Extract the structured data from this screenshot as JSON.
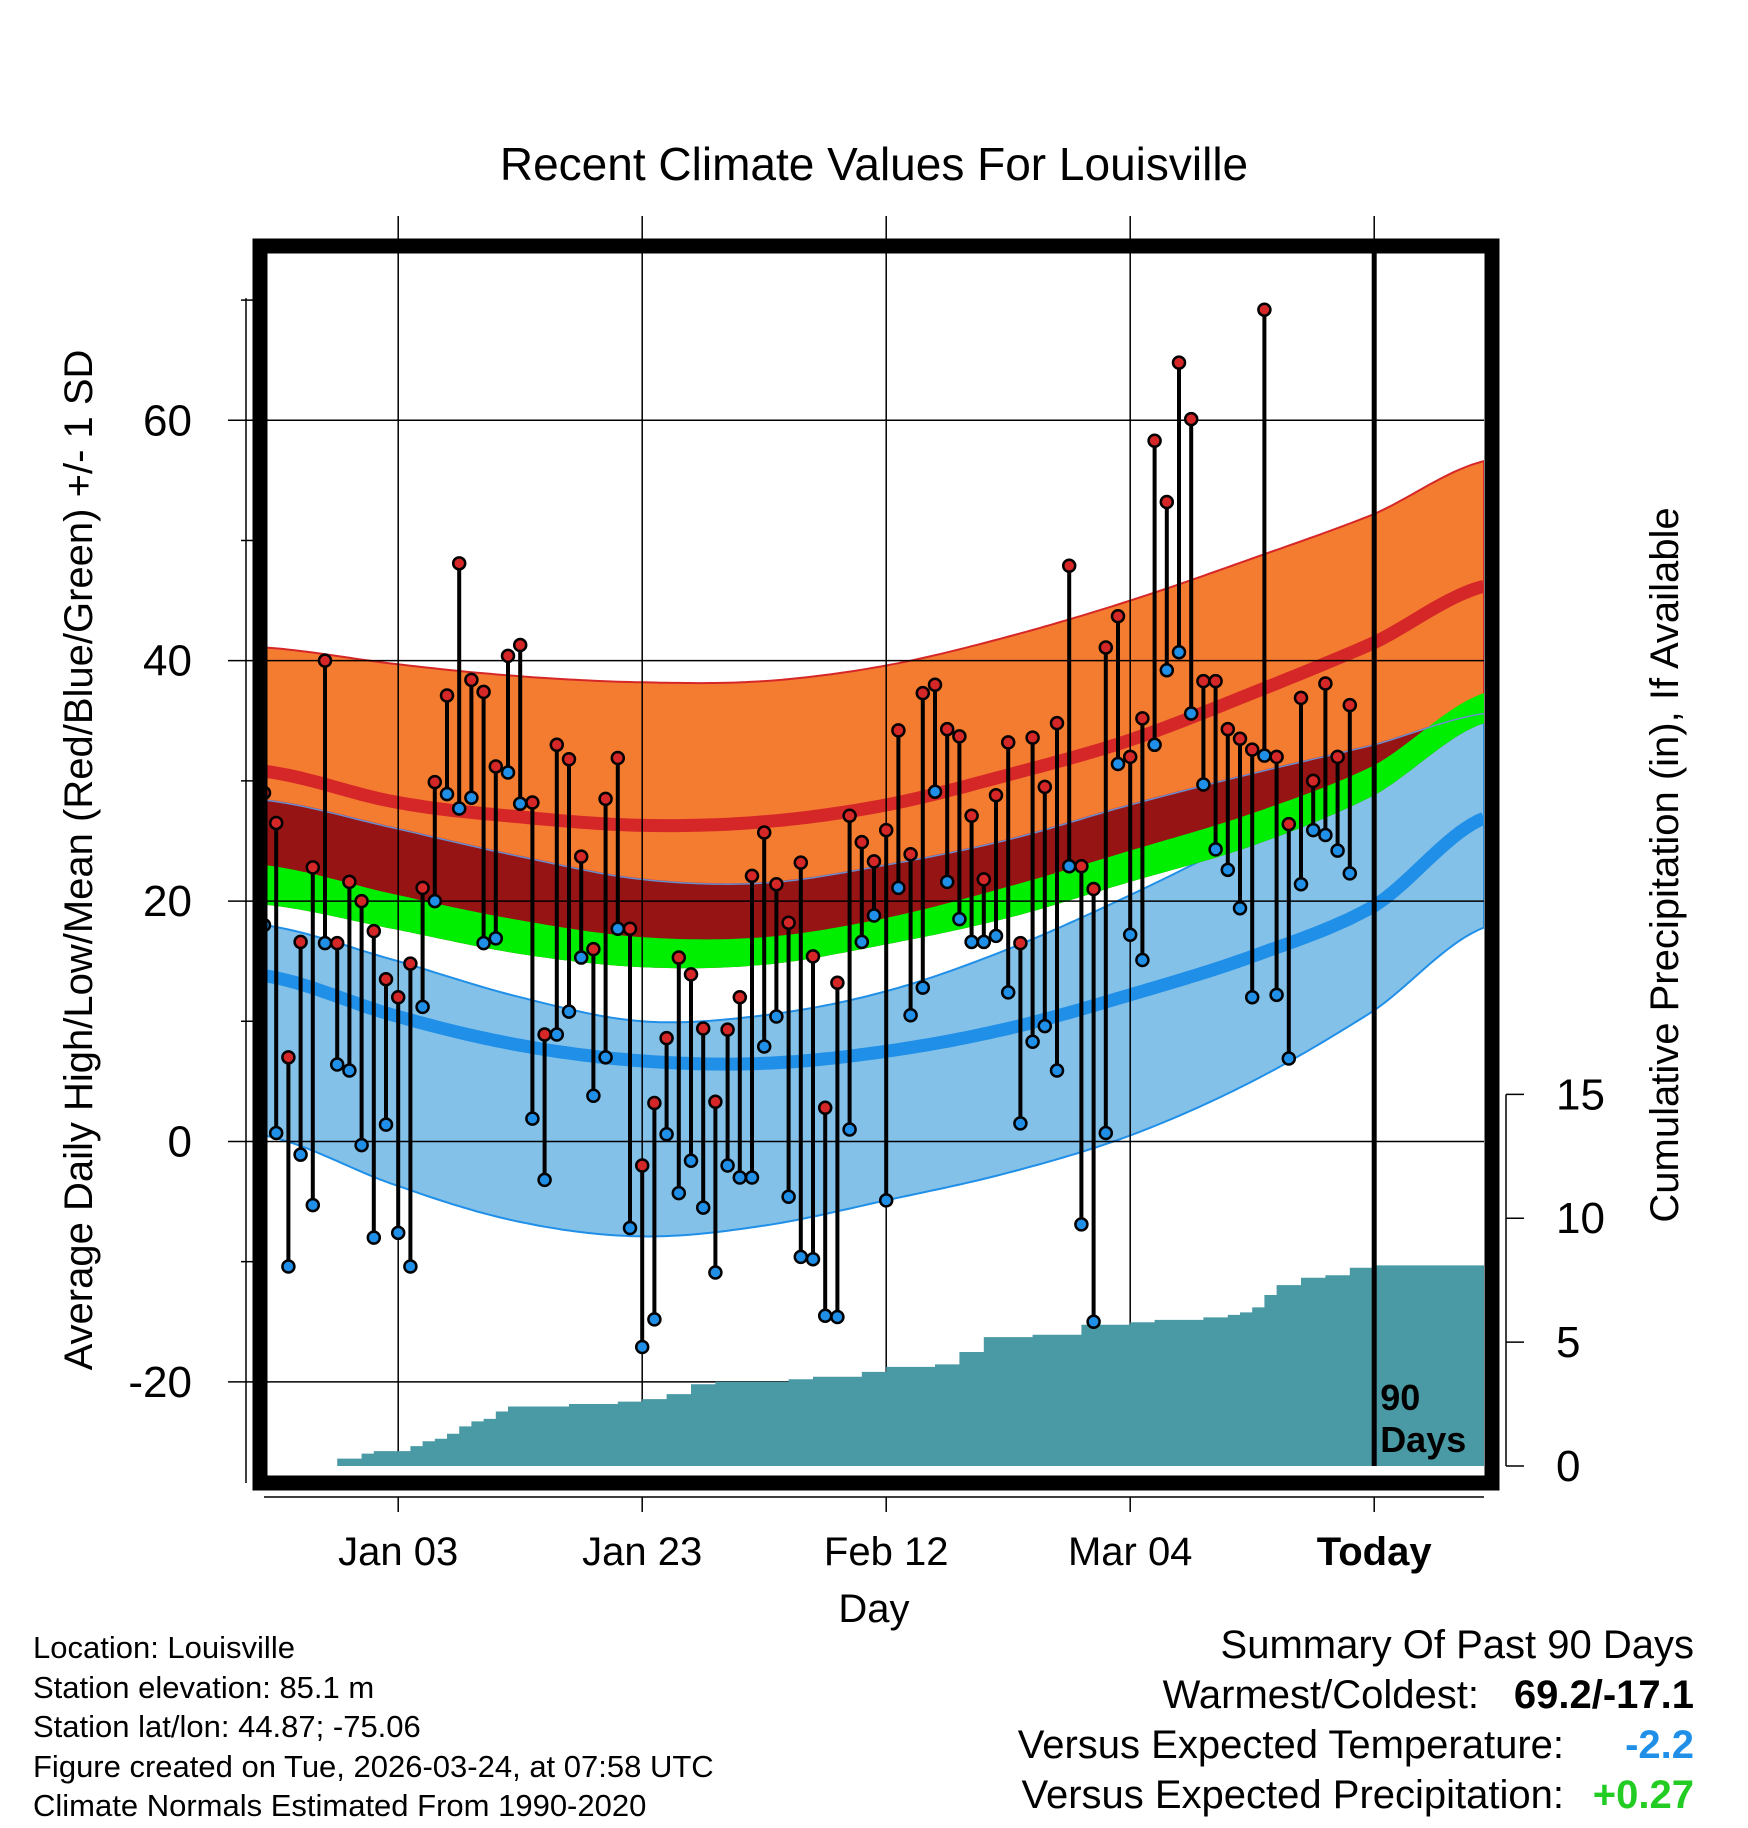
{
  "chart_data": {
    "type": "line",
    "title": "Recent Climate Values For Louisville",
    "xlabel": "Day",
    "ylabel": "Average Daily High/Low/Mean (Red/Blue/Green) +/- 1 SD",
    "y2label": "Cumulative Precipitation (in), If Available",
    "ylim": [
      -27,
      74
    ],
    "y2lim": [
      0,
      49
    ],
    "yticks": [
      -20,
      0,
      20,
      40,
      60
    ],
    "y2ticks": [
      0,
      5,
      10,
      15
    ],
    "xrange": [
      -11,
      89
    ],
    "xticks": [
      {
        "day": 0,
        "label": "Jan 03"
      },
      {
        "day": 20,
        "label": "Jan 23"
      },
      {
        "day": 40,
        "label": "Feb 12"
      },
      {
        "day": 60,
        "label": "Mar 04"
      },
      {
        "day": 80,
        "label": "Today"
      }
    ],
    "today_marker": {
      "day": 80,
      "label_line1": "90",
      "label_line2": "Days"
    },
    "normals": {
      "days": [
        -11,
        0,
        10,
        20,
        30,
        40,
        50,
        60,
        70,
        80,
        89
      ],
      "high_plus_sd": [
        41.1,
        39.7,
        38.7,
        38.2,
        38.3,
        39.6,
        42.0,
        45.0,
        48.5,
        52.2,
        56.6
      ],
      "high_mean": [
        30.8,
        28.2,
        27.0,
        26.3,
        26.6,
        28.0,
        30.5,
        33.4,
        37.3,
        41.5,
        46.2
      ],
      "high_minus_sd": [
        28.4,
        26.0,
        23.7,
        21.8,
        21.5,
        23.0,
        25.1,
        28.0,
        30.6,
        33.0,
        35.6
      ],
      "mean_plus_sd": [
        23.0,
        20.5,
        18.4,
        17.0,
        17.0,
        18.6,
        21.2,
        24.2,
        27.3,
        31.3,
        37.3
      ],
      "mean": [
        22.3,
        19.2,
        17.1,
        16.2,
        16.6,
        17.8,
        20.0,
        23.0,
        26.3,
        30.5,
        36.0
      ],
      "mean_minus_sd": [
        19.7,
        17.6,
        15.6,
        14.5,
        14.7,
        16.4,
        18.6,
        21.6,
        24.6,
        28.8,
        34.8
      ],
      "low_plus_sd": [
        14.8,
        12.0,
        9.5,
        7.5,
        7.3,
        8.5,
        10.5,
        13.0,
        16.2,
        20.0,
        24.9
      ],
      "low_mean": [
        13.8,
        10.4,
        8.0,
        6.7,
        6.5,
        7.5,
        9.4,
        12.2,
        15.4,
        19.6,
        26.9
      ],
      "low_minus_sd": [
        0.5,
        -3.7,
        -6.7,
        -7.9,
        -7.0,
        -4.9,
        -2.6,
        0.5,
        5.0,
        10.9,
        17.8
      ],
      "lowband_top": [
        18.0,
        15.0,
        12.0,
        10.0,
        10.5,
        12.5,
        16.0,
        20.5,
        25.5,
        30.5,
        35.5
      ]
    },
    "series": [
      {
        "name": "Daily High",
        "color": "#d62728",
        "values": [
          29.0,
          26.5,
          7.0,
          16.6,
          22.8,
          40.0,
          16.5,
          21.6,
          20.0,
          17.5,
          13.5,
          12.0,
          14.8,
          21.1,
          29.9,
          37.1,
          48.1,
          38.4,
          37.4,
          31.2,
          40.4,
          41.3,
          28.2,
          8.9,
          33.0,
          31.8,
          23.7,
          16.0,
          28.5,
          31.9,
          17.7,
          -2.0,
          3.2,
          8.6,
          15.3,
          13.9,
          9.4,
          3.3,
          9.3,
          12.0,
          22.1,
          25.7,
          21.4,
          18.2,
          23.2,
          15.4,
          2.8,
          13.2,
          27.1,
          24.9,
          23.3,
          25.9,
          34.2,
          23.9,
          37.3,
          38.0,
          34.3,
          33.7,
          27.1,
          21.8,
          28.8,
          33.2,
          16.5,
          33.6,
          29.5,
          34.8,
          47.9,
          22.9,
          21.0,
          41.1,
          43.7,
          32.0,
          35.2,
          58.3,
          53.2,
          64.8,
          60.1,
          38.3,
          38.3,
          34.3,
          33.5,
          32.6,
          69.2,
          32.0,
          26.4,
          36.9,
          30.0,
          38.1,
          32.0,
          36.3
        ]
      },
      {
        "name": "Daily Low",
        "color": "#1f8fe8",
        "values": [
          18.0,
          0.7,
          -10.4,
          -1.1,
          -5.3,
          16.5,
          6.4,
          5.9,
          -0.3,
          -8.0,
          1.4,
          -7.6,
          -10.4,
          11.2,
          20.0,
          28.9,
          27.7,
          28.6,
          16.5,
          16.9,
          30.7,
          28.1,
          1.9,
          -3.2,
          8.9,
          10.8,
          15.3,
          3.8,
          7.0,
          17.7,
          -7.2,
          -17.1,
          -14.8,
          0.6,
          -4.3,
          -1.6,
          -5.5,
          -10.9,
          -2.0,
          -3.0,
          -3.0,
          7.9,
          10.4,
          -4.6,
          -9.6,
          -9.8,
          -14.5,
          -14.6,
          1.0,
          16.6,
          18.8,
          -4.9,
          21.1,
          10.5,
          12.8,
          29.1,
          21.6,
          18.5,
          16.6,
          16.6,
          17.1,
          12.4,
          1.5,
          8.3,
          9.6,
          5.9,
          22.9,
          -6.9,
          -15.0,
          0.7,
          31.4,
          17.2,
          15.1,
          33.0,
          39.2,
          40.7,
          35.6,
          29.7,
          24.3,
          22.6,
          19.4,
          12.0,
          32.1,
          12.2,
          6.9,
          21.4,
          25.9,
          25.5,
          24.2,
          22.3
        ]
      }
    ],
    "precipitation": {
      "name": "Cumulative Precipitation (in)",
      "color": "#4a9aa6",
      "days": [
        -11,
        -6,
        -5,
        -3,
        -2,
        0,
        1,
        2,
        3,
        4,
        5,
        6,
        7,
        8,
        9,
        10,
        11,
        12,
        14,
        16,
        18,
        20,
        22,
        24,
        26,
        28,
        30,
        32,
        34,
        36,
        38,
        40,
        42,
        44,
        46,
        48,
        50,
        52,
        54,
        56,
        58,
        60,
        62,
        64,
        66,
        68,
        69,
        70,
        71,
        72,
        74,
        76,
        78,
        80,
        89
      ],
      "values": [
        0,
        0,
        0.3,
        0.5,
        0.6,
        0.6,
        0.8,
        1.0,
        1.1,
        1.3,
        1.6,
        1.8,
        1.9,
        2.2,
        2.4,
        2.4,
        2.4,
        2.4,
        2.5,
        2.5,
        2.6,
        2.7,
        2.9,
        3.3,
        3.4,
        3.4,
        3.4,
        3.5,
        3.6,
        3.6,
        3.8,
        4.0,
        4.0,
        4.1,
        4.6,
        5.2,
        5.2,
        5.3,
        5.3,
        5.7,
        5.7,
        5.8,
        5.9,
        5.9,
        6.0,
        6.1,
        6.2,
        6.4,
        6.9,
        7.3,
        7.6,
        7.7,
        8.0,
        8.1,
        8.1
      ]
    }
  },
  "info": {
    "location": "Location: Louisville",
    "elevation": "Station elevation: 85.1 m",
    "latlon": "Station lat/lon: 44.87; -75.06",
    "created": "Figure created on Tue, 2026-03-24, at 07:58 UTC",
    "normals": "Climate Normals Estimated From 1990-2020"
  },
  "summary": {
    "title": "Summary Of Past 90 Days",
    "warmest_coldest_label": "Warmest/Coldest:",
    "warmest_coldest_value": "69.2/-17.1",
    "temp_label": "Versus Expected Temperature:",
    "temp_value": "-2.2",
    "temp_color": "#1f8fe8",
    "precip_label": "Versus Expected Precipitation:",
    "precip_value": "+0.27",
    "precip_color": "#22cc22"
  }
}
